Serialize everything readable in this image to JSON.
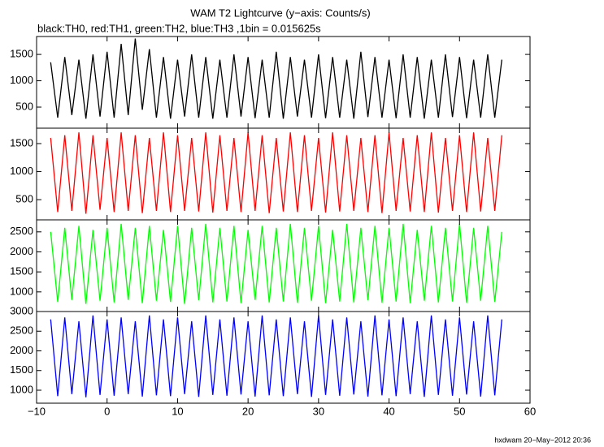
{
  "chart_data": [
    {
      "type": "line",
      "title": "WAM T2 Lightcurve (y−axis: Counts/s)",
      "subtitle": "black:TH0, red:TH1, green:TH2, blue:TH3 ,1bin = 0.015625s",
      "x": [
        -8,
        -7,
        -6,
        -5,
        -4,
        -3,
        -2,
        -1,
        0,
        1,
        2,
        3,
        4,
        5,
        6,
        7,
        8,
        9,
        10,
        11,
        12,
        13,
        14,
        15,
        16,
        17,
        18,
        19,
        20,
        21,
        22,
        23,
        24,
        25,
        26,
        27,
        28,
        29,
        30,
        31,
        32,
        33,
        34,
        35,
        36,
        37,
        38,
        39,
        40,
        41,
        42,
        43,
        44,
        45,
        46,
        47,
        48,
        49,
        50,
        51,
        52,
        53,
        54,
        55,
        56
      ],
      "series": [
        {
          "name": "TH0",
          "color": "#000000",
          "values": [
            1350,
            300,
            1450,
            350,
            1400,
            280,
            1500,
            320,
            1550,
            300,
            1700,
            350,
            1800,
            450,
            1600,
            300,
            1450,
            280,
            1400,
            320,
            1500,
            300,
            1450,
            280,
            1400,
            300,
            1500,
            320,
            1450,
            290,
            1400,
            300,
            1550,
            280,
            1450,
            320,
            1400,
            300,
            1500,
            290,
            1450,
            300,
            1400,
            280,
            1550,
            310,
            1450,
            300,
            1400,
            290,
            1500,
            300,
            1450,
            280,
            1400,
            300,
            1500,
            310,
            1450,
            290,
            1400,
            300,
            1500,
            300,
            1400
          ]
        }
      ],
      "ylim": [
        100,
        1840
      ],
      "yticks": [
        500,
        1000,
        1500
      ]
    },
    {
      "type": "line",
      "x": [
        -8,
        -7,
        -6,
        -5,
        -4,
        -3,
        -2,
        -1,
        0,
        1,
        2,
        3,
        4,
        5,
        6,
        7,
        8,
        9,
        10,
        11,
        12,
        13,
        14,
        15,
        16,
        17,
        18,
        19,
        20,
        21,
        22,
        23,
        24,
        25,
        26,
        27,
        28,
        29,
        30,
        31,
        32,
        33,
        34,
        35,
        36,
        37,
        38,
        39,
        40,
        41,
        42,
        43,
        44,
        45,
        46,
        47,
        48,
        49,
        50,
        51,
        52,
        53,
        54,
        55,
        56
      ],
      "series": [
        {
          "name": "TH1",
          "color": "#ff0000",
          "values": [
            1600,
            280,
            1650,
            300,
            1700,
            250,
            1650,
            320,
            1600,
            280,
            1700,
            300,
            1650,
            260,
            1600,
            300,
            1700,
            280,
            1650,
            300,
            1600,
            290,
            1700,
            270,
            1650,
            300,
            1600,
            280,
            1700,
            300,
            1650,
            260,
            1600,
            290,
            1700,
            280,
            1650,
            300,
            1600,
            270,
            1700,
            290,
            1650,
            300,
            1600,
            280,
            1650,
            260,
            1700,
            300,
            1600,
            290,
            1650,
            280,
            1700,
            270,
            1600,
            300,
            1650,
            280,
            1700,
            290,
            1600,
            300,
            1650
          ]
        }
      ],
      "ylim": [
        140,
        1775
      ],
      "yticks": [
        500,
        1000,
        1500
      ]
    },
    {
      "type": "line",
      "x": [
        -8,
        -7,
        -6,
        -5,
        -4,
        -3,
        -2,
        -1,
        0,
        1,
        2,
        3,
        4,
        5,
        6,
        7,
        8,
        9,
        10,
        11,
        12,
        13,
        14,
        15,
        16,
        17,
        18,
        19,
        20,
        21,
        22,
        23,
        24,
        25,
        26,
        27,
        28,
        29,
        30,
        31,
        32,
        33,
        34,
        35,
        36,
        37,
        38,
        39,
        40,
        41,
        42,
        43,
        44,
        45,
        46,
        47,
        48,
        49,
        50,
        51,
        52,
        53,
        54,
        55,
        56
      ],
      "series": [
        {
          "name": "TH2",
          "color": "#00ff00",
          "values": [
            2500,
            750,
            2600,
            800,
            2650,
            700,
            2550,
            780,
            2600,
            740,
            2700,
            800,
            2600,
            720,
            2650,
            780,
            2550,
            750,
            2650,
            700,
            2600,
            790,
            2700,
            740,
            2600,
            760,
            2650,
            720,
            2550,
            800,
            2650,
            740,
            2600,
            760,
            2700,
            730,
            2600,
            780,
            2650,
            720,
            2550,
            760,
            2700,
            740,
            2600,
            790,
            2650,
            730,
            2600,
            760,
            2700,
            720,
            2550,
            780,
            2650,
            740,
            2600,
            760,
            2700,
            730,
            2600,
            780,
            2650,
            750,
            2500
          ]
        }
      ],
      "ylim": [
        510,
        2800
      ],
      "yticks": [
        1000,
        1500,
        2000,
        2500
      ]
    },
    {
      "type": "line",
      "x": [
        -8,
        -7,
        -6,
        -5,
        -4,
        -3,
        -2,
        -1,
        0,
        1,
        2,
        3,
        4,
        5,
        6,
        7,
        8,
        9,
        10,
        11,
        12,
        13,
        14,
        15,
        16,
        17,
        18,
        19,
        20,
        21,
        22,
        23,
        24,
        25,
        26,
        27,
        28,
        29,
        30,
        31,
        32,
        33,
        34,
        35,
        36,
        37,
        38,
        39,
        40,
        41,
        42,
        43,
        44,
        45,
        46,
        47,
        48,
        49,
        50,
        51,
        52,
        53,
        54,
        55,
        56
      ],
      "series": [
        {
          "name": "TH3",
          "color": "#0000ff",
          "values": [
            2800,
            850,
            2850,
            900,
            2750,
            820,
            2900,
            880,
            2800,
            860,
            2850,
            900,
            2750,
            840,
            2900,
            870,
            2800,
            850,
            2850,
            900,
            2750,
            830,
            2900,
            880,
            2800,
            860,
            2850,
            890,
            2750,
            840,
            2900,
            870,
            2800,
            850,
            2850,
            900,
            2750,
            830,
            2900,
            880,
            2800,
            860,
            2850,
            890,
            2750,
            840,
            2900,
            870,
            2800,
            850,
            2850,
            900,
            2750,
            830,
            2900,
            880,
            2800,
            860,
            2850,
            890,
            2750,
            840,
            2900,
            870,
            2800
          ]
        }
      ],
      "ylim": [
        670,
        3000
      ],
      "yticks": [
        1000,
        1500,
        2000,
        2500,
        3000
      ],
      "xlim": [
        -10,
        60
      ],
      "xticks": [
        {
          "value": -10,
          "label": "−10"
        },
        0,
        10,
        20,
        30,
        40,
        50,
        60
      ]
    }
  ],
  "footer": "hxdwam 20−May−2012 20:36"
}
